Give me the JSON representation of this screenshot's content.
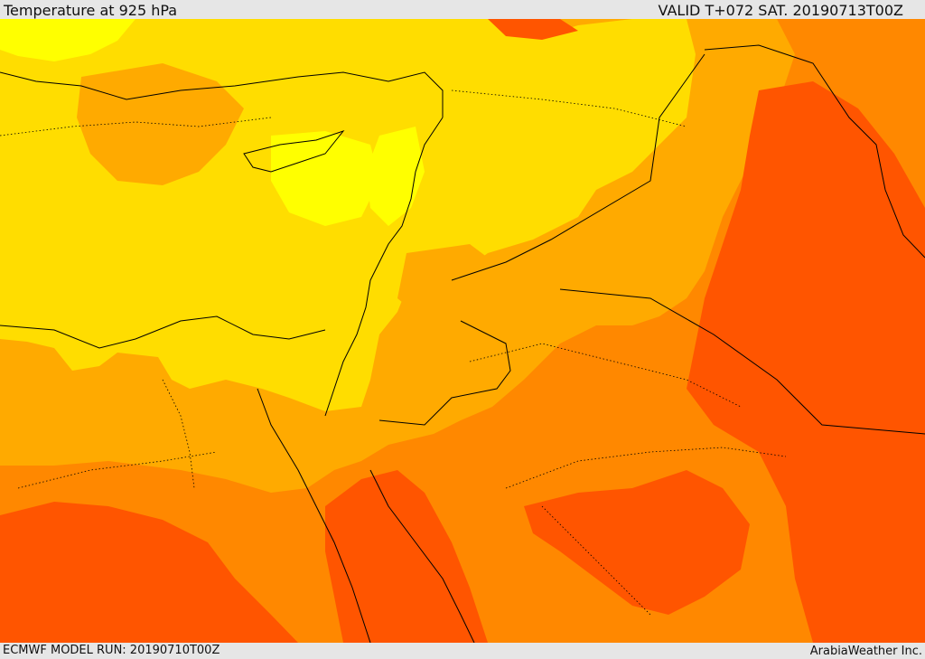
{
  "header": {
    "title": "Temperature at 925 hPa",
    "valid": "VALID T+072 SAT. 20190713T00Z"
  },
  "footer": {
    "model_run": "ECMWF MODEL RUN: 20190710T00Z",
    "credit": "ArabiaWeather Inc."
  },
  "map": {
    "palette": {
      "bright_yellow": "#ffff00",
      "yellow": "#ffdd00",
      "amber": "#ffaa00",
      "orange": "#ff8800",
      "red_orange": "#ff5500",
      "border": "#000000"
    }
  }
}
